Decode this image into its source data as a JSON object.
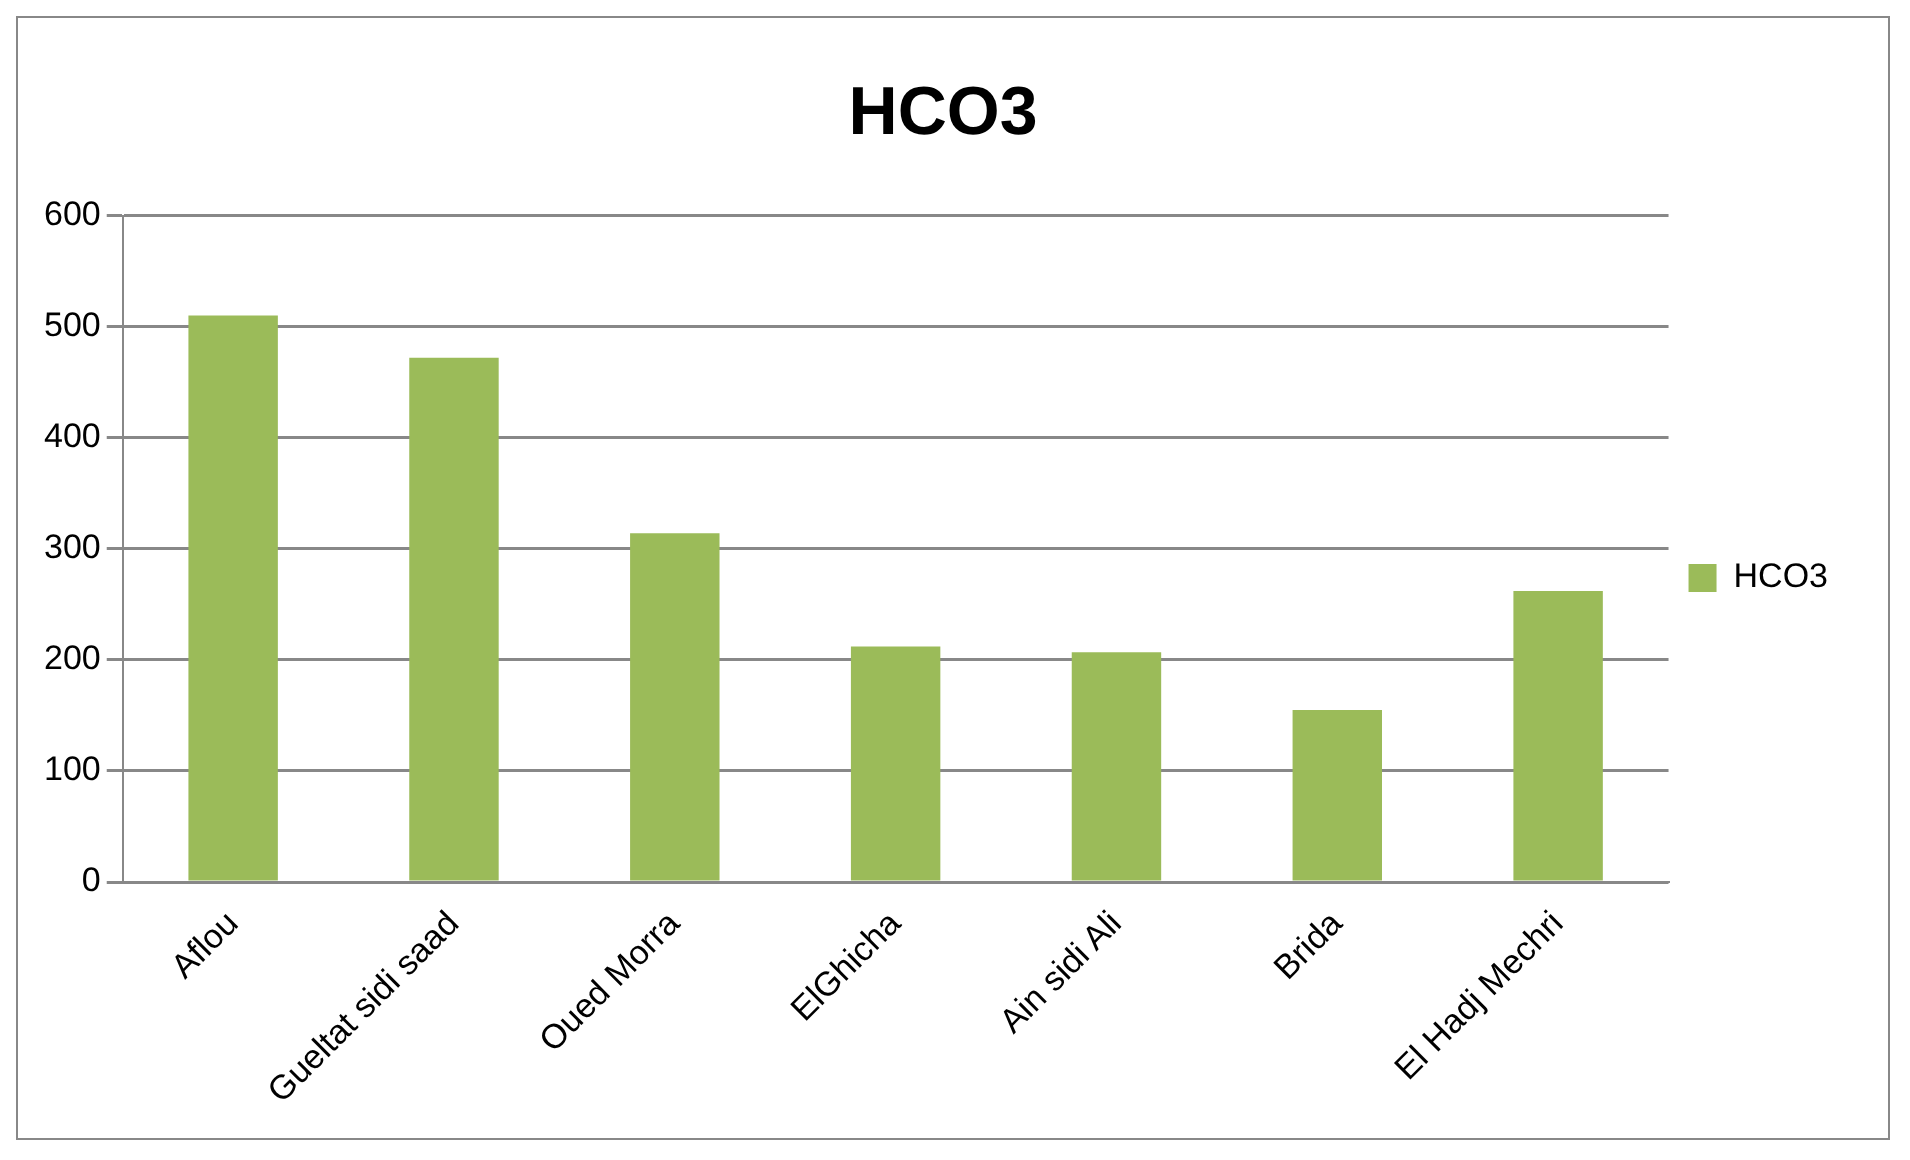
{
  "chart_data": {
    "type": "bar",
    "title": "HCO3",
    "categories": [
      "Aflou",
      "Gueltat sidi saad",
      "Oued Morra",
      "ElGhicha",
      "Ain sidi Ali",
      "Brida",
      "El Hadj Mechri"
    ],
    "series": [
      {
        "name": "HCO3",
        "color": "#9bbb59",
        "values": [
          510,
          472,
          314,
          212,
          207,
          155,
          262
        ]
      }
    ],
    "ylim": [
      0,
      600
    ],
    "yticks": [
      0,
      100,
      200,
      300,
      400,
      500,
      600
    ],
    "grid": "y",
    "legend": "right"
  }
}
